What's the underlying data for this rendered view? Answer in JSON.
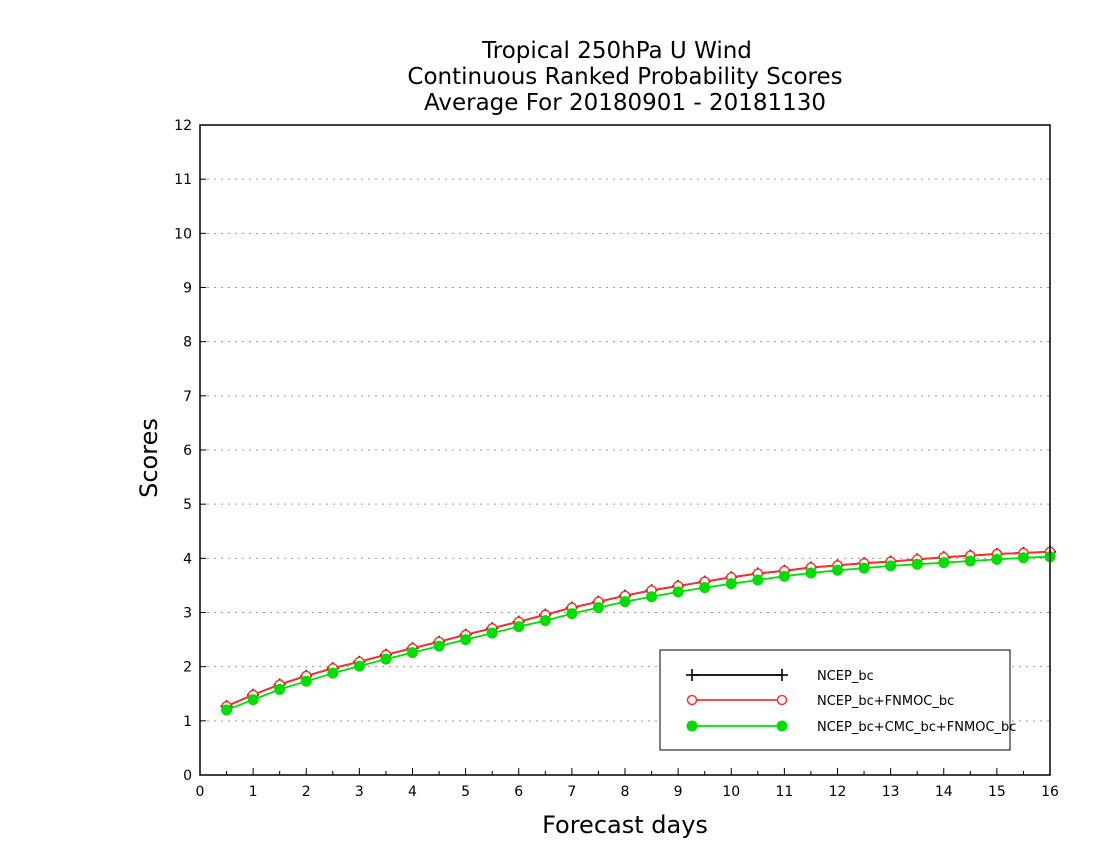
{
  "chart_data": {
    "type": "line",
    "title_lines": [
      "Tropical 250hPa U Wind",
      "Continuous Ranked Probability Scores",
      "Average For 20180901 - 20181130"
    ],
    "xlabel": "Forecast days",
    "ylabel": "Scores",
    "xlim": [
      0,
      16
    ],
    "ylim": [
      0,
      12
    ],
    "xticks": [
      0,
      1,
      2,
      3,
      4,
      5,
      6,
      7,
      8,
      9,
      10,
      11,
      12,
      13,
      14,
      15,
      16
    ],
    "yticks": [
      0,
      1,
      2,
      3,
      4,
      5,
      6,
      7,
      8,
      9,
      10,
      11,
      12
    ],
    "grid": "horizontal dotted",
    "legend_position": "bottom-right",
    "x": [
      0.5,
      1.0,
      1.5,
      2.0,
      2.5,
      3.0,
      3.5,
      4.0,
      4.5,
      5.0,
      5.5,
      6.0,
      6.5,
      7.0,
      7.5,
      8.0,
      8.5,
      9.0,
      9.5,
      10.0,
      10.5,
      11.0,
      11.5,
      12.0,
      12.5,
      13.0,
      13.5,
      14.0,
      14.5,
      15.0,
      15.5,
      16.0
    ],
    "series": [
      {
        "name": "NCEP_bc",
        "color": "#000000",
        "marker": "plus",
        "values": [
          1.27,
          1.48,
          1.67,
          1.83,
          1.97,
          2.09,
          2.22,
          2.34,
          2.46,
          2.59,
          2.71,
          2.83,
          2.96,
          3.09,
          3.2,
          3.31,
          3.41,
          3.49,
          3.57,
          3.65,
          3.72,
          3.77,
          3.83,
          3.87,
          3.91,
          3.94,
          3.98,
          4.02,
          4.05,
          4.08,
          4.1,
          4.12
        ]
      },
      {
        "name": "NCEP_bc+FNMOC_bc",
        "color": "#ff3030",
        "marker": "open-circle",
        "values": [
          1.27,
          1.48,
          1.67,
          1.83,
          1.97,
          2.09,
          2.22,
          2.34,
          2.46,
          2.59,
          2.71,
          2.83,
          2.96,
          3.09,
          3.2,
          3.31,
          3.41,
          3.49,
          3.57,
          3.65,
          3.72,
          3.77,
          3.83,
          3.87,
          3.91,
          3.94,
          3.98,
          4.02,
          4.05,
          4.08,
          4.1,
          4.12
        ]
      },
      {
        "name": "NCEP_bc+CMC_bc+FNMOC_bc",
        "color": "#00dd00",
        "marker": "filled-circle",
        "values": [
          1.2,
          1.39,
          1.58,
          1.73,
          1.88,
          2.01,
          2.14,
          2.26,
          2.38,
          2.5,
          2.62,
          2.74,
          2.85,
          2.98,
          3.09,
          3.2,
          3.29,
          3.38,
          3.46,
          3.53,
          3.6,
          3.67,
          3.73,
          3.78,
          3.82,
          3.86,
          3.89,
          3.92,
          3.95,
          3.98,
          4.01,
          4.03
        ]
      }
    ]
  }
}
